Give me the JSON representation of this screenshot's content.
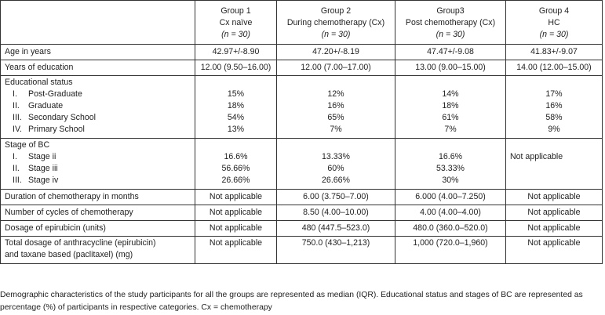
{
  "table": {
    "headers": [
      {
        "group": "",
        "desc": "",
        "n": ""
      },
      {
        "group": "Group 1",
        "desc": "Cx naïve",
        "n": "(n = 30)"
      },
      {
        "group": "Group 2",
        "desc": "During chemotherapy (Cx)",
        "n": "(n = 30)"
      },
      {
        "group": "Group3",
        "desc": "Post chemotherapy (Cx)",
        "n": "(n = 30)"
      },
      {
        "group": "Group 4",
        "desc": "HC",
        "n": "(n = 30)"
      }
    ],
    "age": {
      "label": "Age in years",
      "values": [
        "42.97+/-8.90",
        "47.20+/-8.19",
        "47.47+/-9.08",
        "41.83+/-9.07"
      ]
    },
    "education_years": {
      "label": "Years of education",
      "values": [
        "12.00 (9.50–16.00)",
        "12.00 (7.00–17.00)",
        "13.00 (9.00–15.00)",
        "14.00 (12.00–15.00)"
      ]
    },
    "educational_status": {
      "label": "Educational status",
      "items": [
        {
          "num": "I.",
          "label": "Post-Graduate",
          "values": [
            "15%",
            "12%",
            "14%",
            "17%"
          ]
        },
        {
          "num": "II.",
          "label": "Graduate",
          "values": [
            "18%",
            "16%",
            "18%",
            "16%"
          ]
        },
        {
          "num": "III.",
          "label": "Secondary School",
          "values": [
            "54%",
            "65%",
            "61%",
            "58%"
          ]
        },
        {
          "num": "IV.",
          "label": "Primary School",
          "values": [
            "13%",
            "7%",
            "7%",
            "9%"
          ]
        }
      ]
    },
    "stage": {
      "label": "Stage of BC",
      "not_applicable": "Not applicable",
      "items": [
        {
          "num": "I.",
          "label": "Stage ii",
          "values": [
            "16.6%",
            "13.33%",
            "16.6%"
          ]
        },
        {
          "num": "II.",
          "label": "Stage iii",
          "values": [
            "56.66%",
            "60%",
            "53.33%"
          ]
        },
        {
          "num": "III.",
          "label": "Stage iv",
          "values": [
            "26.66%",
            "26.66%",
            "30%"
          ]
        }
      ]
    },
    "duration": {
      "label": "Duration of chemotherapy in months",
      "values": [
        "Not applicable",
        "6.00 (3.750–7.00)",
        "6.000 (4.00–7.250)",
        "Not applicable"
      ]
    },
    "cycles": {
      "label": "Number of cycles of chemotherapy",
      "values": [
        "Not applicable",
        "8.50 (4.00–10.00)",
        "4.00 (4.00–4.00)",
        "Not applicable"
      ]
    },
    "epirubicin": {
      "label": "Dosage of epirubicin (units)",
      "values": [
        "Not applicable",
        "480 (447.5–523.0)",
        "480.0 (360.0–520.0)",
        "Not applicable"
      ]
    },
    "total_dosage": {
      "label_line1": "Total dosage of anthracycline (epirubicin)",
      "label_line2": "and taxane based (paclitaxel) (mg)",
      "values": [
        "Not applicable",
        "750.0 (430–1,213)",
        "1,000 (720.0–1,960)",
        "Not applicable"
      ]
    }
  },
  "caption": "Demographic characteristics of the study participants for all the groups are represented as median (IQR). Educational status and stages of BC are represented as percentage (%) of participants in respective categories. Cx = chemotherapy"
}
